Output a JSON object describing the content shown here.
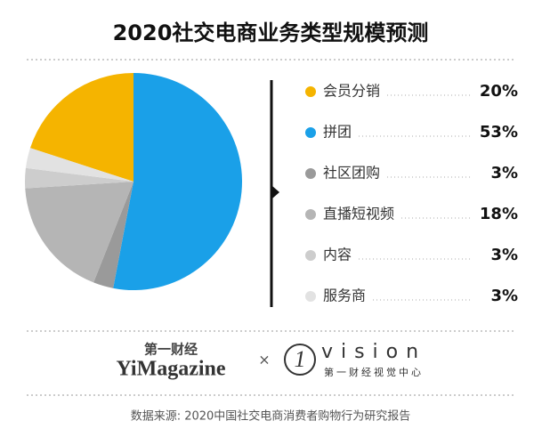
{
  "chart_data": {
    "type": "pie",
    "title": "2020社交电商业务类型规模预测",
    "categories": [
      "会员分销",
      "拼团",
      "社区团购",
      "直播短视频",
      "内容",
      "服务商"
    ],
    "values": [
      20,
      53,
      3,
      18,
      3,
      3
    ],
    "value_labels": [
      "20%",
      "53%",
      "3%",
      "18%",
      "3%",
      "3%"
    ],
    "colors": [
      "#f5b400",
      "#1aa0e8",
      "#9a9a9a",
      "#b5b5b5",
      "#cdcdcd",
      "#e2e2e2"
    ]
  },
  "footer": {
    "brand_cn": "第一财经",
    "brand_en": "YiMagazine",
    "times": "×",
    "vision_num": "1",
    "vision": "vision",
    "vision_cn": "第一财经视觉中心",
    "source": "数据来源: 2020中国社交电商消费者购物行为研究报告"
  }
}
